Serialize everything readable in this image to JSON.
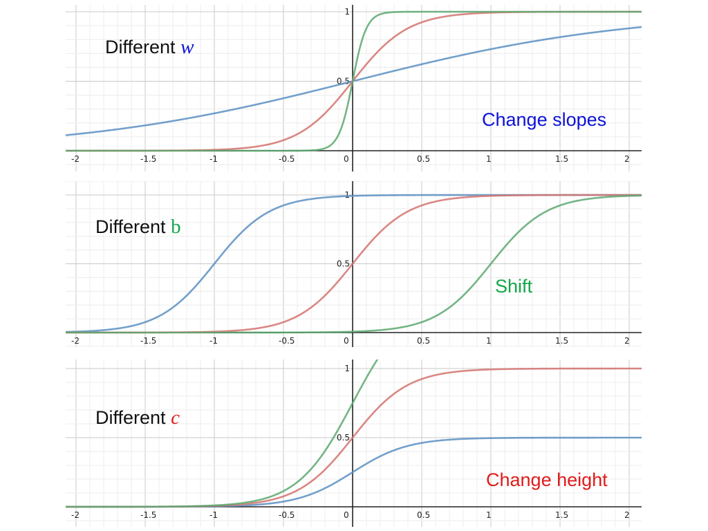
{
  "colors": {
    "blue": "#5b8fc2",
    "red": "#d4726d",
    "green": "#5aa86e",
    "note_blue": "#0d12d9",
    "note_green": "#14a64a",
    "note_red": "#e01b1b"
  },
  "chart_data": [
    {
      "type": "line",
      "function": "sigmoid",
      "xlim": [
        -2.1,
        2.1
      ],
      "ylim": [
        0,
        1
      ],
      "x_ticks": [
        "-2",
        "-1.5",
        "-1",
        "-0.5",
        "0",
        "0.5",
        "1",
        "1.5",
        "2"
      ],
      "y_ticks": [
        "0.5",
        "1"
      ],
      "grid": true,
      "label_prefix": "Different ",
      "label_var": "w",
      "note": "Change slopes",
      "series": [
        {
          "color": "blue",
          "w": 1,
          "b": 0,
          "c": 1
        },
        {
          "color": "red",
          "w": 5,
          "b": 0,
          "c": 1
        },
        {
          "color": "green",
          "w": 20,
          "b": 0,
          "c": 1
        }
      ]
    },
    {
      "type": "line",
      "function": "sigmoid",
      "xlim": [
        -2.1,
        2.1
      ],
      "ylim": [
        0,
        1
      ],
      "x_ticks": [
        "-2",
        "-1.5",
        "-1",
        "-0.5",
        "0",
        "0.5",
        "1",
        "1.5",
        "2"
      ],
      "y_ticks": [
        "0.5",
        "1"
      ],
      "grid": true,
      "label_prefix": "Different ",
      "label_var": "b",
      "note": "Shift",
      "series": [
        {
          "color": "blue",
          "w": 5,
          "b": 5,
          "c": 1
        },
        {
          "color": "red",
          "w": 5,
          "b": 0,
          "c": 1
        },
        {
          "color": "green",
          "w": 5,
          "b": -5,
          "c": 1
        }
      ]
    },
    {
      "type": "line",
      "function": "sigmoid",
      "xlim": [
        -2.1,
        2.1
      ],
      "ylim": [
        0,
        1
      ],
      "x_ticks": [
        "-2",
        "-1.5",
        "-1",
        "-0.5",
        "0",
        "0.5",
        "1",
        "1.5",
        "2"
      ],
      "y_ticks": [
        "0.5",
        "1"
      ],
      "grid": true,
      "label_prefix": "Different ",
      "label_var": "c",
      "note": "Change height",
      "series": [
        {
          "color": "blue",
          "w": 5,
          "b": 0,
          "c": 0.5
        },
        {
          "color": "red",
          "w": 5,
          "b": 0,
          "c": 1
        },
        {
          "color": "green",
          "w": 5,
          "b": 0,
          "c": 1.5
        }
      ]
    }
  ]
}
